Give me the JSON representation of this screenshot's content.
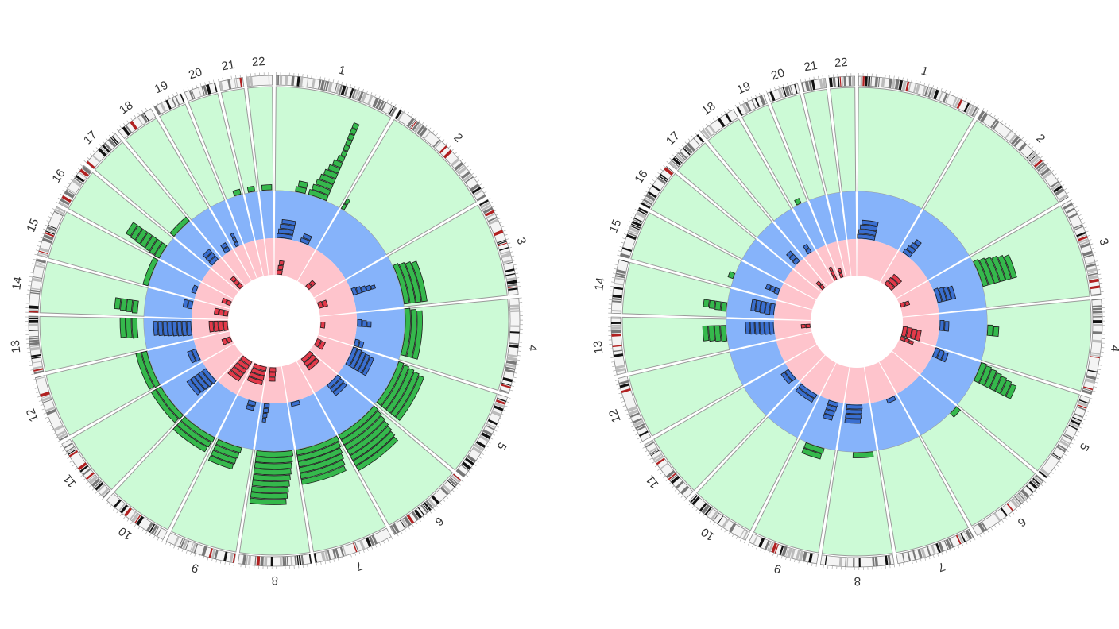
{
  "chromosomes": [
    "1",
    "2",
    "3",
    "4",
    "5",
    "6",
    "7",
    "8",
    "9",
    "10",
    "11",
    "12",
    "13",
    "14",
    "15",
    "16",
    "17",
    "18",
    "19",
    "20",
    "21",
    "22"
  ],
  "chrom_lengths_mb": [
    249,
    243,
    198,
    191,
    181,
    171,
    159,
    146,
    141,
    136,
    135,
    134,
    115,
    107,
    103,
    90,
    81,
    78,
    59,
    63,
    48,
    51
  ],
  "colors": {
    "outer_track": "#ccfad6",
    "middle_track": "#86b3fa",
    "inner_track": "#fec4cc",
    "green_bar": "#35b84c",
    "blue_bar": "#3a6fd0",
    "red_bar": "#e23a4a",
    "band_red": "#b02020"
  },
  "plots": [
    {
      "name": "left",
      "green": [
        [
          1,
          0.5,
          0.78,
          0,
          13
        ],
        [
          1,
          0.3,
          0.45,
          0,
          1
        ],
        [
          2,
          0.02,
          0.05,
          0,
          1
        ],
        [
          3,
          0.2,
          0.95,
          0,
          3
        ],
        [
          4,
          0.0,
          0.9,
          0,
          2
        ],
        [
          5,
          0.0,
          0.95,
          0,
          4
        ],
        [
          6,
          0.0,
          1.0,
          0,
          6
        ],
        [
          7,
          0.0,
          1.0,
          0,
          5
        ],
        [
          8,
          0.05,
          0.95,
          0,
          8
        ],
        [
          9,
          0.3,
          0.95,
          0,
          3
        ],
        [
          10,
          0.0,
          1.0,
          0,
          2
        ],
        [
          11,
          0.0,
          1.0,
          0,
          1
        ],
        [
          12,
          0.0,
          1.0,
          0,
          1
        ],
        [
          13,
          0.4,
          1.0,
          1,
          3
        ],
        [
          14,
          0.1,
          0.5,
          1,
          4
        ],
        [
          15,
          0.0,
          1.0,
          0,
          0
        ],
        [
          16,
          0.0,
          0.6,
          0,
          6
        ],
        [
          17,
          0.0,
          1.0,
          0,
          0
        ],
        [
          20,
          0.5,
          0.9,
          0,
          0
        ],
        [
          21,
          0.3,
          0.8,
          0,
          0
        ],
        [
          22,
          0.2,
          0.9,
          0,
          0
        ]
      ],
      "blue": [
        [
          1,
          0.05,
          0.4,
          0,
          3
        ],
        [
          1,
          0.6,
          0.8,
          0,
          1
        ],
        [
          3,
          0.3,
          0.5,
          0,
          4
        ],
        [
          4,
          0.2,
          0.4,
          0,
          2
        ],
        [
          4,
          0.8,
          1.0,
          0,
          1
        ],
        [
          5,
          0.0,
          0.6,
          0,
          4
        ],
        [
          6,
          0.0,
          0.5,
          0,
          2
        ],
        [
          7,
          0.6,
          0.9,
          0,
          0
        ],
        [
          8,
          0.7,
          0.9,
          0,
          3
        ],
        [
          9,
          0.2,
          0.5,
          0,
          1
        ],
        [
          11,
          0.0,
          0.7,
          0,
          4
        ],
        [
          12,
          0.1,
          0.6,
          0,
          1
        ],
        [
          13,
          0.2,
          0.9,
          0,
          7
        ],
        [
          14,
          0.5,
          0.9,
          0,
          1
        ],
        [
          15,
          0.3,
          0.7,
          0,
          0
        ],
        [
          17,
          0.2,
          0.8,
          0,
          2
        ],
        [
          18,
          0.4,
          0.8,
          0,
          1
        ],
        [
          19,
          0.3,
          0.6,
          0,
          2
        ]
      ],
      "red": [
        [
          1,
          0.1,
          0.3,
          0,
          2
        ],
        [
          2,
          0.4,
          0.6,
          0,
          1
        ],
        [
          3,
          0.3,
          0.6,
          0,
          1
        ],
        [
          4,
          0.3,
          0.6,
          0,
          0
        ],
        [
          5,
          0.2,
          0.6,
          0,
          1
        ],
        [
          6,
          0.0,
          0.7,
          0,
          2
        ],
        [
          8,
          0.4,
          0.8,
          0,
          2
        ],
        [
          9,
          0.0,
          0.9,
          0,
          3
        ],
        [
          10,
          0.1,
          0.9,
          0,
          4
        ],
        [
          12,
          0.2,
          0.6,
          0,
          1
        ],
        [
          13,
          0.1,
          0.9,
          0,
          3
        ],
        [
          14,
          0.3,
          0.8,
          0,
          2
        ],
        [
          15,
          0.3,
          0.7,
          0,
          1
        ],
        [
          17,
          0.3,
          0.8,
          0,
          2
        ]
      ]
    },
    {
      "name": "right",
      "green": [
        [
          3,
          0.1,
          0.6,
          0,
          5
        ],
        [
          4,
          0.3,
          0.5,
          0,
          1
        ],
        [
          5,
          0.0,
          0.4,
          0,
          6
        ],
        [
          6,
          0.0,
          0.2,
          0,
          0
        ],
        [
          8,
          0.1,
          0.6,
          0,
          0
        ],
        [
          9,
          0.3,
          0.8,
          0,
          1
        ],
        [
          13,
          0.3,
          0.8,
          0,
          3
        ],
        [
          14,
          0.2,
          0.5,
          0,
          3
        ],
        [
          15,
          0.3,
          0.5,
          0,
          0
        ],
        [
          19,
          0.3,
          0.6,
          0,
          0
        ]
      ],
      "blue": [
        [
          1,
          0.0,
          0.4,
          0,
          3
        ],
        [
          2,
          0.1,
          0.3,
          0,
          3
        ],
        [
          3,
          0.3,
          0.7,
          0,
          3
        ],
        [
          4,
          0.2,
          0.5,
          0,
          1
        ],
        [
          5,
          0.0,
          0.3,
          0,
          2
        ],
        [
          7,
          0.1,
          0.4,
          0,
          0
        ],
        [
          8,
          0.3,
          0.9,
          0,
          3
        ],
        [
          9,
          0.2,
          0.6,
          0,
          3
        ],
        [
          10,
          0.1,
          0.9,
          0,
          1
        ],
        [
          11,
          0.2,
          0.7,
          0,
          1
        ],
        [
          13,
          0.3,
          0.9,
          0,
          5
        ],
        [
          14,
          0.2,
          0.8,
          0,
          4
        ],
        [
          15,
          0.3,
          0.6,
          0,
          2
        ],
        [
          17,
          0.3,
          0.7,
          0,
          2
        ],
        [
          18,
          0.4,
          0.7,
          0,
          1
        ]
      ],
      "red": [
        [
          2,
          0.2,
          0.6,
          0,
          2
        ],
        [
          3,
          0.3,
          0.5,
          0,
          1
        ],
        [
          4,
          0.5,
          1.0,
          0,
          3
        ],
        [
          5,
          0.0,
          0.2,
          0,
          2
        ],
        [
          13,
          0.4,
          0.7,
          0,
          1
        ],
        [
          17,
          0.3,
          0.7,
          0,
          1
        ],
        [
          19,
          0.2,
          0.6,
          0,
          2
        ],
        [
          20,
          0.2,
          0.6,
          0,
          1
        ]
      ]
    }
  ]
}
